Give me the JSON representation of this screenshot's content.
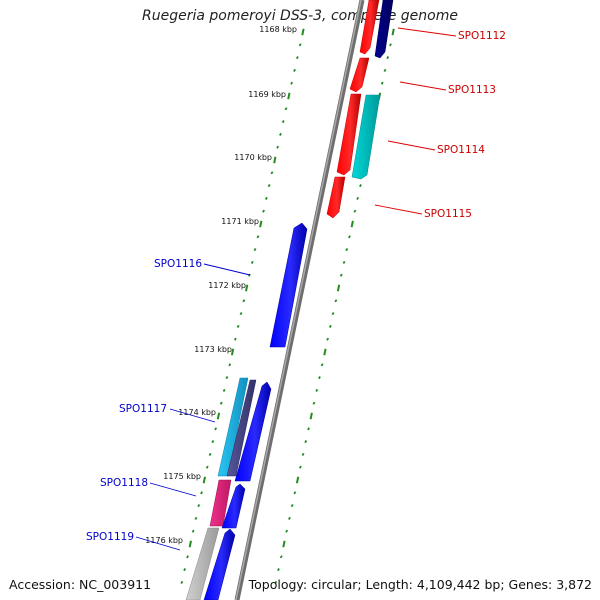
{
  "title": "Ruegeria pomeroyi DSS-3, complete genome",
  "footer": {
    "accession": "Accession: NC_003911",
    "summary": "Topology: circular; Length: 4,109,442 bp; Genes: 3,872"
  },
  "colors": {
    "backbone": "#7f7f7f",
    "tick": "#228b22",
    "forward_label": "#cc0000",
    "reverse_label": "#0000cc",
    "red_gene": "#ff0000",
    "navy_gene": "#000080",
    "cyan_gene": "#00cccc",
    "blue_gene": "#0000ff",
    "light_blue_gene": "#1fb8e8",
    "slate_gene": "#4a4a8c",
    "pink_gene": "#e6287f",
    "grey_gene": "#b8b8b8"
  },
  "scale_labels": [
    "1168 kbp",
    "1169 kbp",
    "1170 kbp",
    "1171 kbp",
    "1172 kbp",
    "1173 kbp",
    "1174 kbp",
    "1175 kbp",
    "1176 kbp"
  ],
  "forward_genes": [
    {
      "label": "SPO1112",
      "color": "red_gene",
      "companion": "navy_gene"
    },
    {
      "label": "SPO1113",
      "color": "red_gene"
    },
    {
      "label": "SPO1114",
      "color": "red_gene",
      "companion": "cyan_gene"
    },
    {
      "label": "SPO1115",
      "color": "red_gene"
    }
  ],
  "reverse_genes": [
    {
      "label": "SPO1116",
      "color": "blue_gene"
    },
    {
      "label": "SPO1117",
      "color": "blue_gene",
      "companions": [
        "light_blue_gene",
        "slate_gene"
      ]
    },
    {
      "label": "SPO1118",
      "color": "blue_gene",
      "companion": "pink_gene"
    },
    {
      "label": "SPO1119",
      "color": "blue_gene",
      "companion": "grey_gene"
    }
  ]
}
